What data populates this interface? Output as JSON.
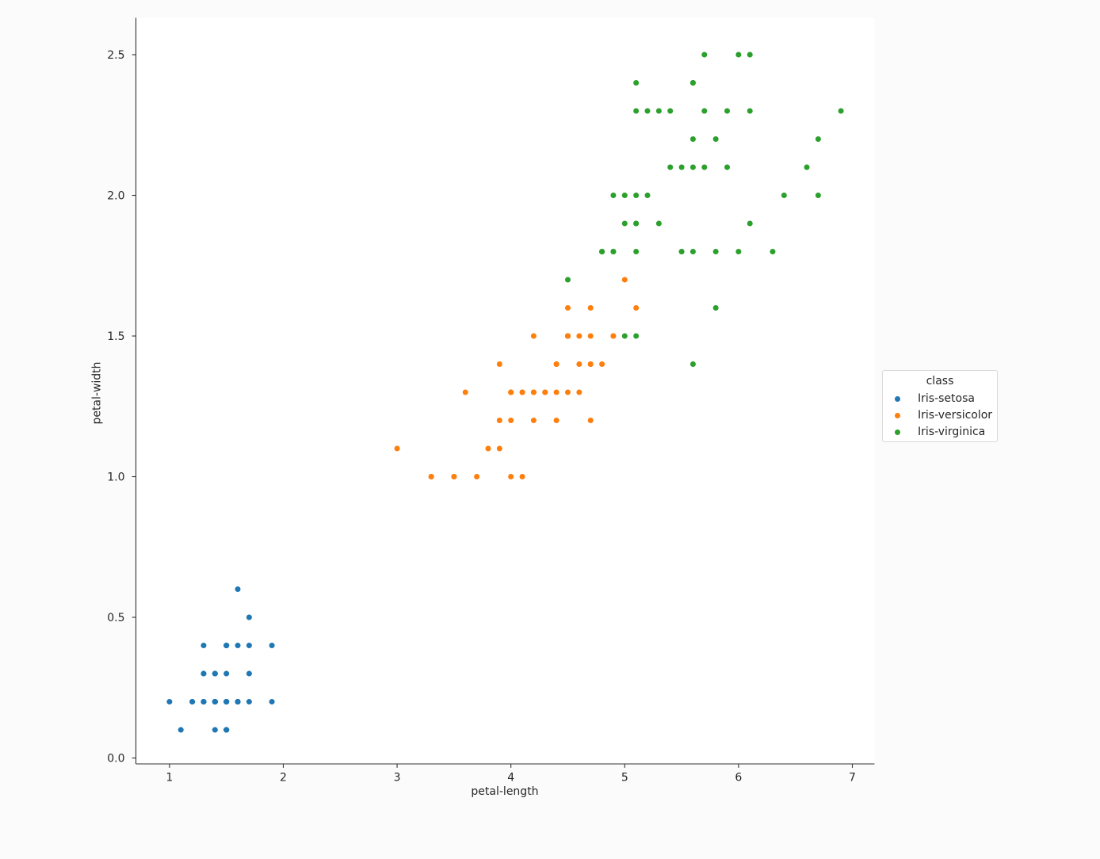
{
  "chart_data": {
    "type": "scatter",
    "title": "",
    "xlabel": "petal-length",
    "ylabel": "petal-width",
    "xlim": [
      0.705,
      7.195
    ],
    "ylim": [
      -0.021,
      2.631
    ],
    "xticks": {
      "values": [
        1,
        2,
        3,
        4,
        5,
        6,
        7
      ],
      "labels": [
        "1",
        "2",
        "3",
        "4",
        "5",
        "6",
        "7"
      ]
    },
    "yticks": {
      "values": [
        0.0,
        0.5,
        1.0,
        1.5,
        2.0,
        2.5
      ],
      "labels": [
        "0.0",
        "0.5",
        "1.0",
        "1.5",
        "2.0",
        "2.5"
      ]
    },
    "grid": false,
    "legend_position": "center-right-outside",
    "legend_title": "class",
    "marker_radius_px": 3.5,
    "series": [
      {
        "name": "Iris-setosa",
        "color": "#1f77b4",
        "points": [
          [
            1.4,
            0.2
          ],
          [
            1.4,
            0.2
          ],
          [
            1.3,
            0.2
          ],
          [
            1.5,
            0.2
          ],
          [
            1.4,
            0.2
          ],
          [
            1.7,
            0.4
          ],
          [
            1.4,
            0.3
          ],
          [
            1.5,
            0.2
          ],
          [
            1.4,
            0.2
          ],
          [
            1.5,
            0.1
          ],
          [
            1.5,
            0.2
          ],
          [
            1.6,
            0.2
          ],
          [
            1.4,
            0.1
          ],
          [
            1.1,
            0.1
          ],
          [
            1.2,
            0.2
          ],
          [
            1.5,
            0.4
          ],
          [
            1.3,
            0.4
          ],
          [
            1.4,
            0.3
          ],
          [
            1.7,
            0.3
          ],
          [
            1.5,
            0.3
          ],
          [
            1.7,
            0.2
          ],
          [
            1.5,
            0.4
          ],
          [
            1.0,
            0.2
          ],
          [
            1.7,
            0.5
          ],
          [
            1.9,
            0.2
          ],
          [
            1.6,
            0.2
          ],
          [
            1.6,
            0.4
          ],
          [
            1.5,
            0.2
          ],
          [
            1.4,
            0.2
          ],
          [
            1.6,
            0.2
          ],
          [
            1.6,
            0.2
          ],
          [
            1.5,
            0.4
          ],
          [
            1.5,
            0.1
          ],
          [
            1.4,
            0.2
          ],
          [
            1.5,
            0.1
          ],
          [
            1.2,
            0.2
          ],
          [
            1.3,
            0.2
          ],
          [
            1.5,
            0.1
          ],
          [
            1.3,
            0.2
          ],
          [
            1.5,
            0.2
          ],
          [
            1.3,
            0.3
          ],
          [
            1.3,
            0.3
          ],
          [
            1.3,
            0.2
          ],
          [
            1.6,
            0.6
          ],
          [
            1.9,
            0.4
          ],
          [
            1.4,
            0.3
          ],
          [
            1.6,
            0.2
          ],
          [
            1.4,
            0.2
          ],
          [
            1.5,
            0.2
          ],
          [
            1.4,
            0.2
          ]
        ]
      },
      {
        "name": "Iris-versicolor",
        "color": "#ff7f0e",
        "points": [
          [
            4.7,
            1.4
          ],
          [
            4.5,
            1.5
          ],
          [
            4.9,
            1.5
          ],
          [
            4.0,
            1.3
          ],
          [
            4.6,
            1.5
          ],
          [
            4.5,
            1.3
          ],
          [
            4.7,
            1.6
          ],
          [
            3.3,
            1.0
          ],
          [
            4.6,
            1.3
          ],
          [
            3.9,
            1.4
          ],
          [
            3.5,
            1.0
          ],
          [
            4.2,
            1.5
          ],
          [
            4.0,
            1.0
          ],
          [
            4.7,
            1.4
          ],
          [
            3.6,
            1.3
          ],
          [
            4.4,
            1.4
          ],
          [
            4.5,
            1.5
          ],
          [
            4.1,
            1.0
          ],
          [
            4.5,
            1.5
          ],
          [
            3.9,
            1.1
          ],
          [
            4.8,
            1.8
          ],
          [
            4.0,
            1.3
          ],
          [
            4.9,
            1.5
          ],
          [
            4.7,
            1.2
          ],
          [
            4.3,
            1.3
          ],
          [
            4.4,
            1.4
          ],
          [
            4.8,
            1.4
          ],
          [
            5.0,
            1.7
          ],
          [
            4.5,
            1.5
          ],
          [
            3.5,
            1.0
          ],
          [
            3.8,
            1.1
          ],
          [
            3.7,
            1.0
          ],
          [
            3.9,
            1.2
          ],
          [
            5.1,
            1.6
          ],
          [
            4.5,
            1.5
          ],
          [
            4.5,
            1.6
          ],
          [
            4.7,
            1.5
          ],
          [
            4.4,
            1.3
          ],
          [
            4.1,
            1.3
          ],
          [
            4.0,
            1.3
          ],
          [
            4.4,
            1.2
          ],
          [
            4.6,
            1.4
          ],
          [
            4.0,
            1.2
          ],
          [
            3.3,
            1.0
          ],
          [
            4.2,
            1.3
          ],
          [
            4.2,
            1.2
          ],
          [
            4.2,
            1.3
          ],
          [
            4.3,
            1.3
          ],
          [
            3.0,
            1.1
          ],
          [
            4.1,
            1.3
          ]
        ]
      },
      {
        "name": "Iris-virginica",
        "color": "#2ca02c",
        "points": [
          [
            6.0,
            2.5
          ],
          [
            5.1,
            1.9
          ],
          [
            5.9,
            2.1
          ],
          [
            5.6,
            1.8
          ],
          [
            5.8,
            2.2
          ],
          [
            6.6,
            2.1
          ],
          [
            4.5,
            1.7
          ],
          [
            6.3,
            1.8
          ],
          [
            5.8,
            1.8
          ],
          [
            6.1,
            2.5
          ],
          [
            5.1,
            2.0
          ],
          [
            5.3,
            1.9
          ],
          [
            5.5,
            2.1
          ],
          [
            5.0,
            2.0
          ],
          [
            5.1,
            2.4
          ],
          [
            5.3,
            2.3
          ],
          [
            5.5,
            1.8
          ],
          [
            6.7,
            2.2
          ],
          [
            6.9,
            2.3
          ],
          [
            5.0,
            1.5
          ],
          [
            5.7,
            2.3
          ],
          [
            4.9,
            2.0
          ],
          [
            6.7,
            2.0
          ],
          [
            4.9,
            1.8
          ],
          [
            5.7,
            2.1
          ],
          [
            6.0,
            1.8
          ],
          [
            4.8,
            1.8
          ],
          [
            4.9,
            1.8
          ],
          [
            5.6,
            2.1
          ],
          [
            5.8,
            1.6
          ],
          [
            6.1,
            1.9
          ],
          [
            6.4,
            2.0
          ],
          [
            5.6,
            2.2
          ],
          [
            5.1,
            1.5
          ],
          [
            5.6,
            1.4
          ],
          [
            6.1,
            2.3
          ],
          [
            5.6,
            2.4
          ],
          [
            5.5,
            1.8
          ],
          [
            4.8,
            1.8
          ],
          [
            5.4,
            2.1
          ],
          [
            5.6,
            2.4
          ],
          [
            5.1,
            2.3
          ],
          [
            5.1,
            1.9
          ],
          [
            5.9,
            2.3
          ],
          [
            5.7,
            2.5
          ],
          [
            5.2,
            2.3
          ],
          [
            5.0,
            1.9
          ],
          [
            5.2,
            2.0
          ],
          [
            5.4,
            2.3
          ],
          [
            5.1,
            1.8
          ]
        ]
      }
    ]
  },
  "legend": {
    "title": "class",
    "items": [
      {
        "label": "Iris-setosa",
        "color": "#1f77b4"
      },
      {
        "label": "Iris-versicolor",
        "color": "#ff7f0e"
      },
      {
        "label": "Iris-virginica",
        "color": "#2ca02c"
      }
    ]
  },
  "style": {
    "page_bg": "#fbfbfb",
    "axes_bg": "#ffffff",
    "spine_color": "#333333",
    "tick_color": "#333333",
    "text_color": "#262626",
    "legend_bg": "#ffffff",
    "legend_border": "#d9d9d9"
  }
}
